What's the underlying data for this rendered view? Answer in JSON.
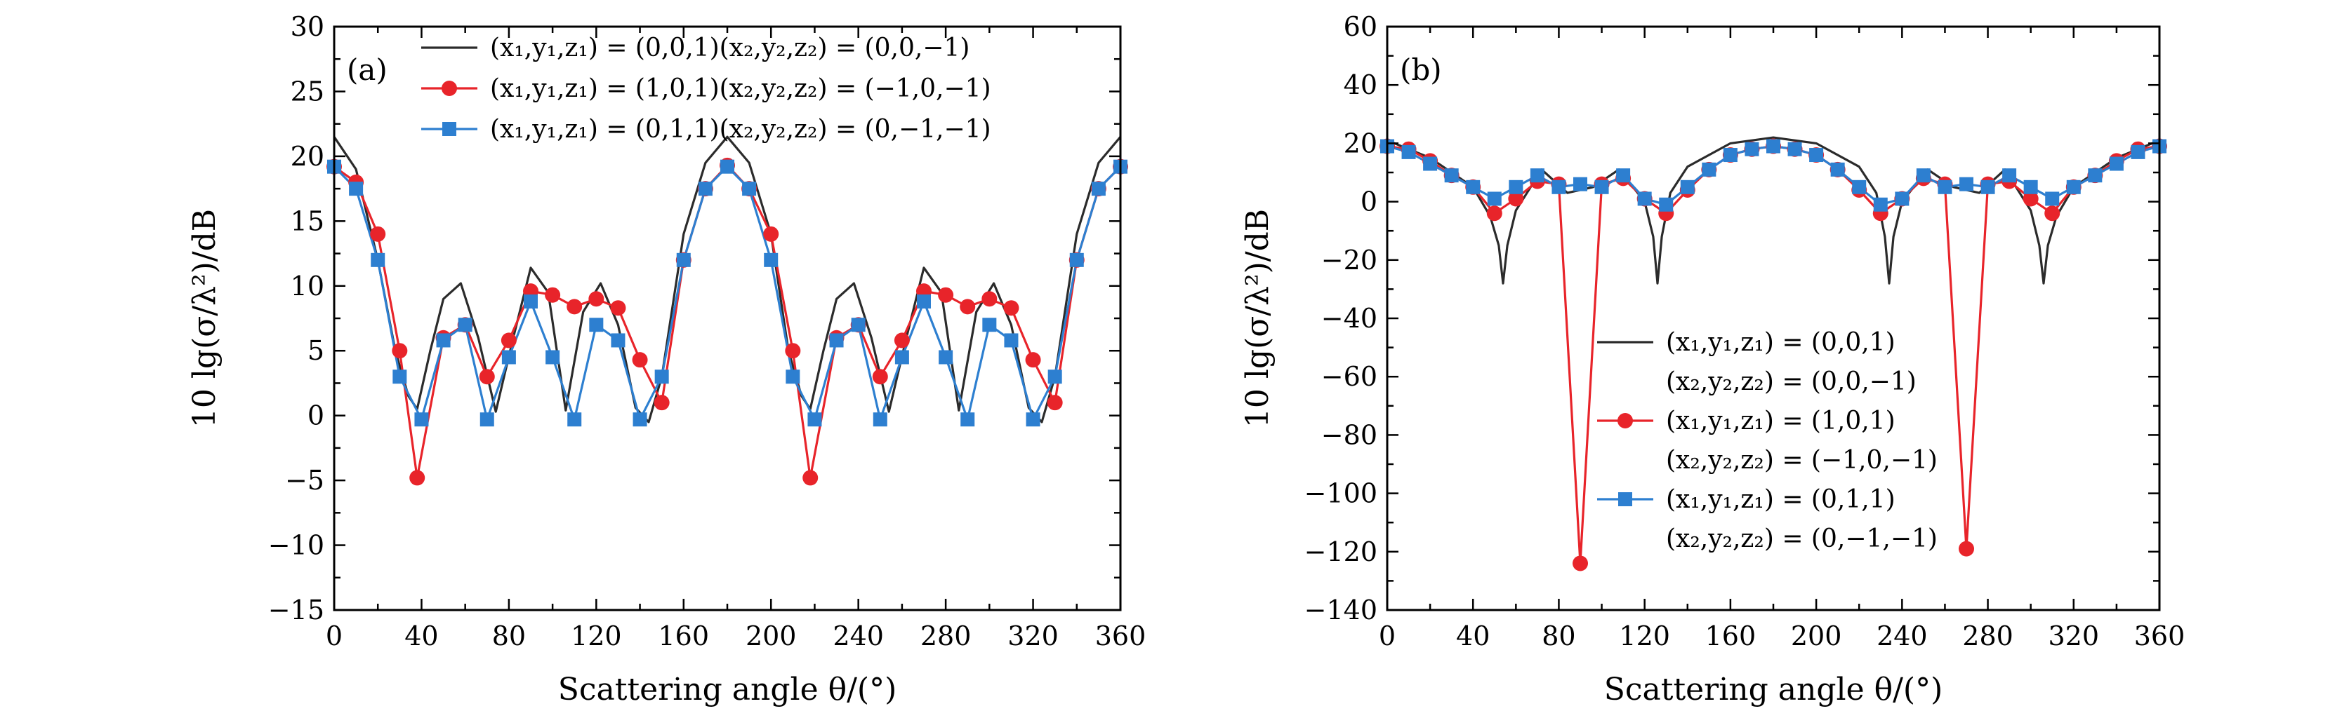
{
  "chart_data": [
    {
      "type": "line",
      "panel_label": "(a)",
      "xlabel": "Scattering angle θ/(°)",
      "ylabel": "10 lg(σ/λ²)/dB",
      "xlim": [
        0,
        360
      ],
      "ylim": [
        -15,
        30
      ],
      "xticks": [
        0,
        40,
        80,
        120,
        160,
        200,
        240,
        280,
        320,
        360
      ],
      "yticks": [
        -15,
        -10,
        -5,
        0,
        5,
        10,
        15,
        20,
        25,
        30
      ],
      "xtick_labels": [
        "0",
        "40",
        "80",
        "120",
        "160",
        "200",
        "240",
        "280",
        "320",
        "360"
      ],
      "ytick_labels": [
        "−15",
        "−10",
        "−5",
        "0",
        "5",
        "10",
        "15",
        "20",
        "25",
        "30"
      ],
      "grid": false,
      "legend_position": "top-right",
      "series": [
        {
          "name": "(x₁,y₁,z₁) = (0,0,1)(x₂,y₂,z₂) = (0,0,−1)",
          "color": "#2b2b2b",
          "marker": "none",
          "x": [
            0,
            10,
            20,
            28,
            34,
            38,
            44,
            50,
            58,
            66,
            74,
            82,
            90,
            98,
            106,
            114,
            122,
            130,
            138,
            144,
            150,
            160,
            170,
            180,
            190,
            200,
            208,
            214,
            218,
            224,
            230,
            238,
            246,
            254,
            262,
            270,
            278,
            286,
            294,
            302,
            310,
            318,
            324,
            330,
            340,
            350,
            360
          ],
          "y": [
            21.5,
            19,
            12,
            5,
            1.5,
            0.5,
            5,
            9,
            10.2,
            6,
            0.3,
            6,
            11.4,
            9.5,
            0.4,
            8,
            10.2,
            7,
            0.6,
            -0.5,
            3,
            14,
            19.5,
            21.5,
            19.5,
            14,
            5,
            1.5,
            0.5,
            5,
            9,
            10.2,
            6,
            0.3,
            6,
            11.4,
            9.5,
            0.4,
            8,
            10.2,
            7,
            0.6,
            -0.5,
            3,
            14,
            19.5,
            21.5
          ]
        },
        {
          "name": "(x₁,y₁,z₁) = (1,0,1)(x₂,y₂,z₂) = (−1,0,−1)",
          "color": "#e8242a",
          "marker": "circle",
          "x": [
            0,
            10,
            20,
            30,
            38,
            50,
            60,
            70,
            80,
            90,
            100,
            110,
            120,
            130,
            140,
            150,
            160,
            170,
            180,
            190,
            200,
            210,
            218,
            230,
            240,
            250,
            260,
            270,
            280,
            290,
            300,
            310,
            320,
            330,
            340,
            350,
            360
          ],
          "y": [
            19.2,
            18,
            14,
            5,
            -4.8,
            6,
            7,
            3,
            5.8,
            9.6,
            9.3,
            8.4,
            9,
            8.3,
            4.3,
            1,
            12,
            17.5,
            19.3,
            17.5,
            14,
            5,
            -4.8,
            6,
            7,
            3,
            5.8,
            9.6,
            9.3,
            8.4,
            9,
            8.3,
            4.3,
            1,
            12,
            17.5,
            19.2
          ]
        },
        {
          "name": "(x₁,y₁,z₁) = (0,1,1)(x₂,y₂,z₂) = (0,−1,−1)",
          "color": "#2d7fd0",
          "marker": "square",
          "x": [
            0,
            10,
            20,
            30,
            40,
            50,
            60,
            70,
            80,
            90,
            100,
            110,
            120,
            130,
            140,
            150,
            160,
            170,
            180,
            190,
            200,
            210,
            220,
            230,
            240,
            250,
            260,
            270,
            280,
            290,
            300,
            310,
            320,
            330,
            340,
            350,
            360
          ],
          "y": [
            19.2,
            17.5,
            12,
            3,
            -0.3,
            5.8,
            7,
            -0.3,
            4.5,
            8.8,
            4.5,
            -0.3,
            7,
            5.8,
            -0.3,
            3,
            12,
            17.5,
            19.2,
            17.5,
            12,
            3,
            -0.3,
            5.8,
            7,
            -0.3,
            4.5,
            8.8,
            4.5,
            -0.3,
            7,
            5.8,
            -0.3,
            3,
            12,
            17.5,
            19.2
          ]
        }
      ]
    },
    {
      "type": "line",
      "panel_label": "(b)",
      "xlabel": "Scattering angle θ/(°)",
      "ylabel": "10 lg(σ/λ²)/dB",
      "xlim": [
        0,
        360
      ],
      "ylim": [
        -140,
        60
      ],
      "xticks": [
        0,
        40,
        80,
        120,
        160,
        200,
        240,
        280,
        320,
        360
      ],
      "yticks": [
        -140,
        -120,
        -100,
        -80,
        -60,
        -40,
        -20,
        0,
        20,
        40,
        60
      ],
      "xtick_labels": [
        "0",
        "40",
        "80",
        "120",
        "160",
        "200",
        "240",
        "280",
        "320",
        "360"
      ],
      "ytick_labels": [
        "−140",
        "−120",
        "−100",
        "−80",
        "−60",
        "−40",
        "−20",
        "0",
        "20",
        "40",
        "60"
      ],
      "grid": false,
      "legend_position": "center-left",
      "series": [
        {
          "name": "(x₁,y₁,z₁) = (0,0,1) (x₂,y₂,z₂) = (0,0,−1)",
          "legend_lines": [
            "(x₁,y₁,z₁) = (0,0,1)",
            "(x₂,y₂,z₂) = (0,0,−1)"
          ],
          "color": "#2b2b2b",
          "marker": "none",
          "x": [
            0,
            20,
            40,
            48,
            52,
            54,
            56,
            60,
            72,
            84,
            96,
            108,
            120,
            124,
            126,
            128,
            132,
            140,
            160,
            180,
            200,
            220,
            228,
            232,
            234,
            236,
            240,
            252,
            264,
            276,
            288,
            300,
            304,
            306,
            308,
            312,
            320,
            340,
            360
          ],
          "y": [
            21,
            15,
            5,
            -5,
            -15,
            -28,
            -15,
            -3,
            11,
            3,
            5,
            11,
            0,
            -12,
            -28,
            -12,
            3,
            12,
            20,
            22,
            20,
            12,
            3,
            -12,
            -28,
            -12,
            0,
            11,
            5,
            3,
            11,
            -3,
            -15,
            -28,
            -15,
            -5,
            5,
            15,
            21
          ]
        },
        {
          "name": "(x₁,y₁,z₁) = (1,0,1) (x₂,y₂,z₂) = (−1,0,−1)",
          "legend_lines": [
            "(x₁,y₁,z₁) = (1,0,1)",
            "(x₂,y₂,z₂) = (−1,0,−1)"
          ],
          "color": "#e8242a",
          "marker": "circle",
          "x": [
            0,
            10,
            20,
            30,
            40,
            50,
            60,
            70,
            80,
            90,
            100,
            110,
            120,
            130,
            140,
            150,
            160,
            170,
            180,
            190,
            200,
            210,
            220,
            230,
            240,
            250,
            260,
            270,
            280,
            290,
            300,
            310,
            320,
            330,
            340,
            350,
            360
          ],
          "y": [
            19,
            18,
            14,
            9,
            5,
            -4,
            1,
            7,
            6,
            -124,
            6,
            8,
            1,
            -4,
            4,
            11,
            16,
            18,
            19,
            18,
            16,
            11,
            4,
            -4,
            1,
            8,
            6,
            -119,
            6,
            7,
            1,
            -4,
            5,
            9,
            14,
            18,
            19
          ]
        },
        {
          "name": "(x₁,y₁,z₁) = (0,1,1) (x₂,y₂,z₂) = (0,−1,−1)",
          "legend_lines": [
            "(x₁,y₁,z₁) = (0,1,1)",
            "(x₂,y₂,z₂) = (0,−1,−1)"
          ],
          "color": "#2d7fd0",
          "marker": "square",
          "x": [
            0,
            10,
            20,
            30,
            40,
            50,
            60,
            70,
            80,
            90,
            100,
            110,
            120,
            130,
            140,
            150,
            160,
            170,
            180,
            190,
            200,
            210,
            220,
            230,
            240,
            250,
            260,
            270,
            280,
            290,
            300,
            310,
            320,
            330,
            340,
            350,
            360
          ],
          "y": [
            19,
            17,
            13,
            9,
            5,
            1,
            5,
            9,
            5,
            6,
            5,
            9,
            1,
            -1,
            5,
            11,
            16,
            18,
            19,
            18,
            16,
            11,
            5,
            -1,
            1,
            9,
            5,
            6,
            5,
            9,
            5,
            1,
            5,
            9,
            13,
            17,
            19
          ]
        }
      ]
    }
  ]
}
